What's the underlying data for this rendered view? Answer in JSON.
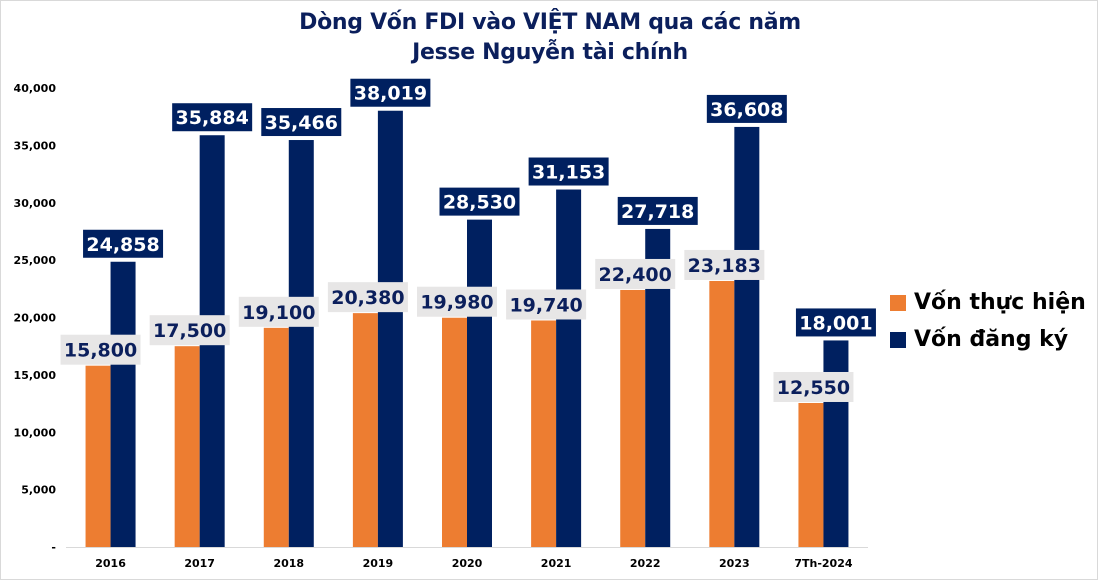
{
  "chart_data": {
    "type": "bar",
    "title": "Dòng Vốn FDI vào VIỆT NAM qua các năm",
    "subtitle": "Jesse Nguyễn tài chính",
    "xlabel": "",
    "ylabel": "",
    "categories": [
      "2016",
      "2017",
      "2018",
      "2019",
      "2020",
      "2021",
      "2022",
      "2023",
      "7Th-2024"
    ],
    "series": [
      {
        "name": "Vốn thực hiện",
        "color": "#ed7d31",
        "values": [
          15800,
          17500,
          19100,
          20380,
          19980,
          19740,
          22400,
          23183,
          12550
        ],
        "labels": [
          "15,800",
          "17,500",
          "19,100",
          "20,380",
          "19,980",
          "19,740",
          "22,400",
          "23,183",
          "12,550"
        ]
      },
      {
        "name": "Vốn đăng ký",
        "color": "#002060",
        "values": [
          24858,
          35884,
          35466,
          38019,
          28530,
          31153,
          27718,
          36608,
          18001
        ],
        "labels": [
          "24,858",
          "35,884",
          "35,466",
          "38,019",
          "28,530",
          "31,153",
          "27,718",
          "36,608",
          "18,001"
        ]
      }
    ],
    "ylim": [
      0,
      40000
    ],
    "yticks": [
      0,
      5000,
      10000,
      15000,
      20000,
      25000,
      30000,
      35000,
      40000
    ],
    "ytick_labels": [
      "-",
      "5,000",
      "10,000",
      "15,000",
      "20,000",
      "25,000",
      "30,000",
      "35,000",
      "40,000"
    ],
    "grid": false,
    "legend_position": "right"
  }
}
